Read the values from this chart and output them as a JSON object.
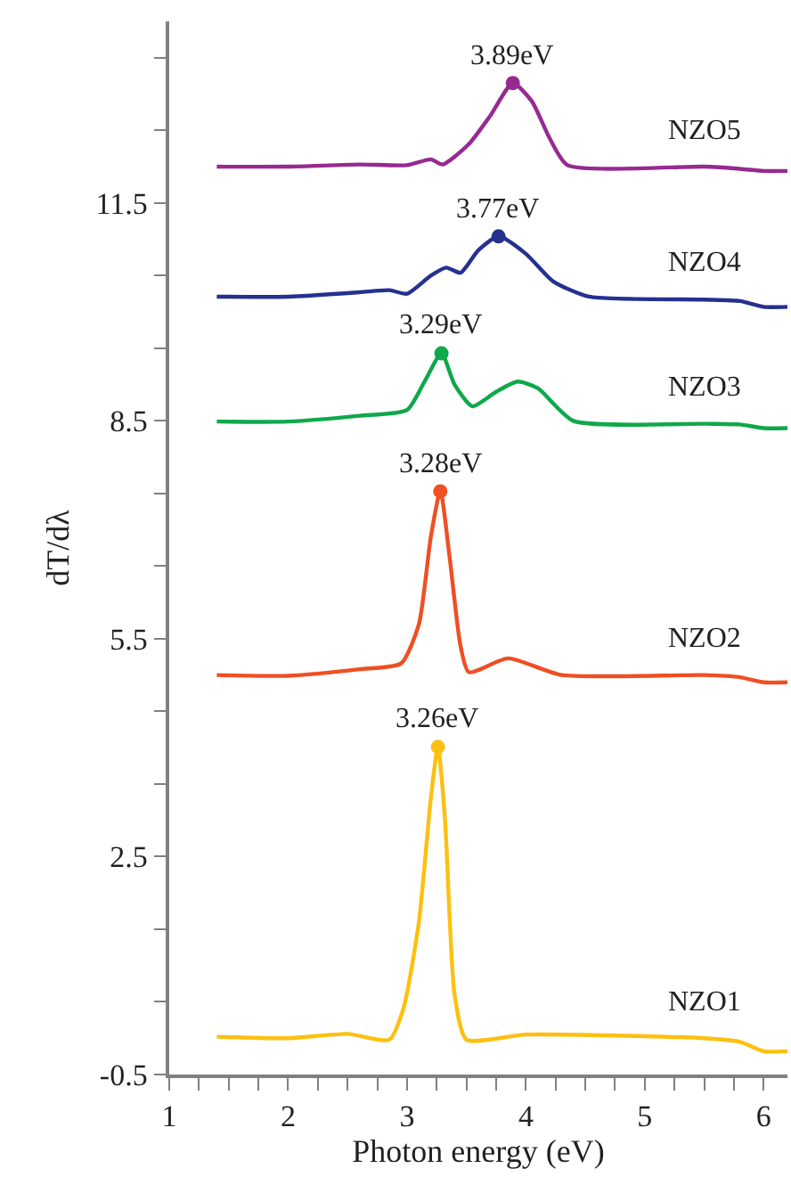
{
  "chart_data": {
    "type": "line",
    "xlabel": "Photon energy (eV)",
    "ylabel": "dT/dλ",
    "xlim": [
      1,
      6.2
    ],
    "ylim": [
      -0.5,
      14.0
    ],
    "xticks": [
      1,
      {
        "value": 1.25,
        "label": null
      },
      {
        "value": 1.5,
        "label": null
      },
      {
        "value": 1.75,
        "label": null
      },
      2,
      {
        "value": 2.25,
        "label": null
      },
      {
        "value": 2.5,
        "label": null
      },
      {
        "value": 2.75,
        "label": null
      },
      3,
      {
        "value": 3.25,
        "label": null
      },
      {
        "value": 3.5,
        "label": null
      },
      {
        "value": 3.75,
        "label": null
      },
      4,
      {
        "value": 4.25,
        "label": null
      },
      {
        "value": 4.5,
        "label": null
      },
      {
        "value": 4.75,
        "label": null
      },
      5,
      {
        "value": 5.25,
        "label": null
      },
      {
        "value": 5.5,
        "label": null
      },
      {
        "value": 5.75,
        "label": null
      },
      6
    ],
    "yticks": [
      -0.5,
      {
        "value": 0.5,
        "label": null
      },
      {
        "value": 1.5,
        "label": null
      },
      2.5,
      {
        "value": 3.5,
        "label": null
      },
      {
        "value": 4.5,
        "label": null
      },
      5.5,
      {
        "value": 6.5,
        "label": null
      },
      {
        "value": 7.5,
        "label": null
      },
      8.5,
      {
        "value": 9.5,
        "label": null
      },
      {
        "value": 10.5,
        "label": null
      },
      11.5,
      {
        "value": 12.5,
        "label": null
      },
      {
        "value": 13.5,
        "label": null
      }
    ],
    "marker": "none",
    "line_style": "solid",
    "series": [
      {
        "name": "NZO1",
        "color": "#fcc010",
        "x": [
          1.4,
          2.0,
          2.5,
          2.85,
          2.97,
          3.1,
          3.2,
          3.26,
          3.32,
          3.4,
          3.5,
          4.0,
          5.5,
          5.8,
          6.0,
          6.2
        ],
        "values": [
          0.02,
          0.0,
          0.06,
          -0.02,
          0.41,
          1.6,
          3.3,
          4.01,
          3.0,
          0.6,
          -0.02,
          0.05,
          0.0,
          -0.05,
          -0.18,
          -0.18
        ]
      },
      {
        "name": "NZO2",
        "color": "#f04e23",
        "x": [
          1.4,
          2.0,
          2.6,
          2.95,
          3.1,
          3.2,
          3.28,
          3.36,
          3.45,
          3.52,
          3.85,
          4.3,
          5.5,
          5.8,
          6.0,
          6.2
        ],
        "values": [
          5.0,
          4.99,
          5.08,
          5.16,
          5.7,
          6.9,
          7.53,
          6.6,
          5.4,
          5.04,
          5.23,
          5.0,
          5.0,
          4.97,
          4.9,
          4.9
        ]
      },
      {
        "name": "NZO3",
        "color": "#0fa84a",
        "x": [
          1.4,
          2.0,
          2.6,
          3.0,
          3.15,
          3.29,
          3.4,
          3.55,
          3.75,
          3.93,
          4.1,
          4.4,
          5.5,
          5.8,
          6.0,
          6.2
        ],
        "values": [
          8.49,
          8.49,
          8.57,
          8.65,
          9.05,
          9.43,
          9.0,
          8.7,
          8.9,
          9.04,
          8.95,
          8.5,
          8.46,
          8.45,
          8.4,
          8.4
        ]
      },
      {
        "name": "NZO4",
        "color": "#24318f",
        "x": [
          1.4,
          2.0,
          2.6,
          2.85,
          3.0,
          3.2,
          3.33,
          3.45,
          3.6,
          3.77,
          4.0,
          4.23,
          4.53,
          5.5,
          5.8,
          6.0,
          6.2
        ],
        "values": [
          10.21,
          10.21,
          10.27,
          10.3,
          10.25,
          10.5,
          10.61,
          10.54,
          10.85,
          11.04,
          10.8,
          10.42,
          10.21,
          10.17,
          10.15,
          10.07,
          10.07
        ]
      },
      {
        "name": "NZO5",
        "color": "#962a91",
        "x": [
          1.4,
          2.0,
          2.6,
          3.0,
          3.2,
          3.3,
          3.52,
          3.7,
          3.89,
          4.05,
          4.2,
          4.35,
          5.5,
          5.8,
          6.0,
          6.2
        ],
        "values": [
          12.0,
          12.0,
          12.03,
          12.02,
          12.1,
          12.03,
          12.31,
          12.7,
          13.15,
          12.9,
          12.39,
          12.02,
          12.0,
          11.97,
          11.94,
          11.94
        ]
      },
      {
        "type": "scatter",
        "marker": "circle",
        "color": "#fcc010",
        "x": [
          3.26
        ],
        "values": [
          4.01
        ]
      },
      {
        "type": "scatter",
        "marker": "circle",
        "color": "#f04e23",
        "x": [
          3.28
        ],
        "values": [
          7.53
        ]
      },
      {
        "type": "scatter",
        "marker": "circle",
        "color": "#0fa84a",
        "x": [
          3.29
        ],
        "values": [
          9.43
        ]
      },
      {
        "type": "scatter",
        "marker": "circle",
        "color": "#24318f",
        "x": [
          3.77
        ],
        "values": [
          11.04
        ]
      },
      {
        "type": "scatter",
        "marker": "circle",
        "color": "#962a91",
        "x": [
          3.89
        ],
        "values": [
          13.15
        ]
      }
    ],
    "annotations": [
      {
        "text": "3.26eV",
        "x": 3.26,
        "y": 4.01
      },
      {
        "text": "3.28eV",
        "x": 3.28,
        "y": 7.53
      },
      {
        "text": "3.29eV",
        "x": 3.29,
        "y": 9.43
      },
      {
        "text": "3.77eV",
        "x": 3.77,
        "y": 11.04
      },
      {
        "text": "3.89eV",
        "x": 3.89,
        "y": 13.15
      }
    ]
  }
}
